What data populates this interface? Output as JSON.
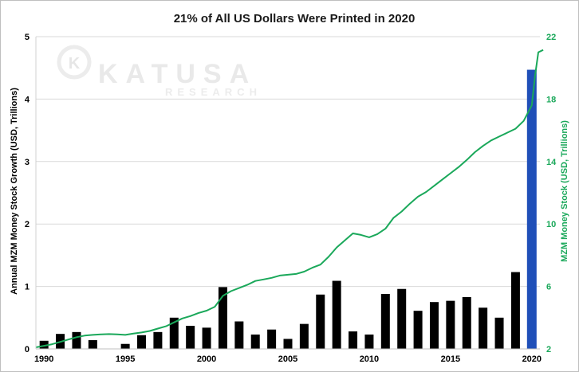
{
  "chart_data": {
    "type": "bar+line",
    "title": "21% of All US Dollars Were Printed in 2020",
    "ylabel_left": "Annual MZM Money Stock Growth (USD, Trillions)",
    "ylabel_right": "MZM Money Stock (USD, Trillions)",
    "ylim_left": [
      0,
      5
    ],
    "ylim_right": [
      2,
      22
    ],
    "left_ticks": [
      0,
      1,
      2,
      3,
      4,
      5
    ],
    "right_ticks": [
      2,
      6,
      10,
      14,
      18,
      22
    ],
    "x_ticks": [
      1990,
      1995,
      2000,
      2005,
      2010,
      2015,
      2020
    ],
    "xlim": [
      1989.5,
      2020.5
    ],
    "grid": true,
    "watermark": {
      "main": "KATUSA",
      "sub": "RESEARCH",
      "logo_letter": "K"
    },
    "colors": {
      "bars": "#000000",
      "highlight_bar": "#1f4fb8",
      "line": "#1aa85a",
      "left_axis_text": "#000000",
      "right_axis_text": "#1aa85a"
    },
    "bars": {
      "name": "Annual MZM Money Stock Growth",
      "years": [
        1990,
        1991,
        1992,
        1993,
        1994,
        1995,
        1996,
        1997,
        1998,
        1999,
        2000,
        2001,
        2002,
        2003,
        2004,
        2005,
        2006,
        2007,
        2008,
        2009,
        2010,
        2011,
        2012,
        2013,
        2014,
        2015,
        2016,
        2017,
        2018,
        2019,
        2020
      ],
      "values": [
        0.13,
        0.24,
        0.27,
        0.14,
        0.0,
        0.08,
        0.22,
        0.27,
        0.5,
        0.37,
        0.34,
        0.99,
        0.44,
        0.23,
        0.31,
        0.16,
        0.4,
        0.87,
        1.09,
        0.28,
        0.23,
        0.88,
        0.96,
        0.61,
        0.75,
        0.77,
        0.83,
        0.66,
        0.5,
        1.23,
        4.47
      ],
      "highlight_year": 2020
    },
    "line": {
      "name": "MZM Money Stock",
      "points": [
        [
          1989.5,
          2.1
        ],
        [
          1990,
          2.2
        ],
        [
          1990.5,
          2.3
        ],
        [
          1991,
          2.45
        ],
        [
          1991.5,
          2.6
        ],
        [
          1992,
          2.75
        ],
        [
          1992.5,
          2.85
        ],
        [
          1993,
          2.9
        ],
        [
          1993.5,
          2.93
        ],
        [
          1994,
          2.95
        ],
        [
          1994.5,
          2.93
        ],
        [
          1995,
          2.9
        ],
        [
          1995.5,
          2.98
        ],
        [
          1996,
          3.05
        ],
        [
          1996.5,
          3.15
        ],
        [
          1997,
          3.3
        ],
        [
          1997.5,
          3.45
        ],
        [
          1998,
          3.7
        ],
        [
          1998.5,
          3.95
        ],
        [
          1999,
          4.1
        ],
        [
          1999.5,
          4.3
        ],
        [
          2000,
          4.45
        ],
        [
          2000.5,
          4.7
        ],
        [
          2001,
          5.4
        ],
        [
          2001.5,
          5.7
        ],
        [
          2002,
          5.9
        ],
        [
          2002.5,
          6.1
        ],
        [
          2003,
          6.35
        ],
        [
          2003.5,
          6.45
        ],
        [
          2004,
          6.55
        ],
        [
          2004.5,
          6.7
        ],
        [
          2005,
          6.75
        ],
        [
          2005.5,
          6.8
        ],
        [
          2006,
          6.95
        ],
        [
          2006.5,
          7.2
        ],
        [
          2007,
          7.4
        ],
        [
          2007.5,
          7.9
        ],
        [
          2008,
          8.5
        ],
        [
          2008.5,
          8.95
        ],
        [
          2009,
          9.4
        ],
        [
          2009.5,
          9.3
        ],
        [
          2010,
          9.15
        ],
        [
          2010.5,
          9.35
        ],
        [
          2011,
          9.7
        ],
        [
          2011.5,
          10.4
        ],
        [
          2012,
          10.8
        ],
        [
          2012.5,
          11.3
        ],
        [
          2013,
          11.75
        ],
        [
          2013.5,
          12.05
        ],
        [
          2014,
          12.45
        ],
        [
          2014.5,
          12.85
        ],
        [
          2015,
          13.25
        ],
        [
          2015.5,
          13.65
        ],
        [
          2016,
          14.1
        ],
        [
          2016.5,
          14.6
        ],
        [
          2017,
          15.0
        ],
        [
          2017.5,
          15.35
        ],
        [
          2018,
          15.6
        ],
        [
          2018.5,
          15.85
        ],
        [
          2019,
          16.1
        ],
        [
          2019.5,
          16.6
        ],
        [
          2020,
          17.6
        ],
        [
          2020.2,
          19.5
        ],
        [
          2020.4,
          21.0
        ],
        [
          2020.7,
          21.15
        ]
      ]
    }
  }
}
